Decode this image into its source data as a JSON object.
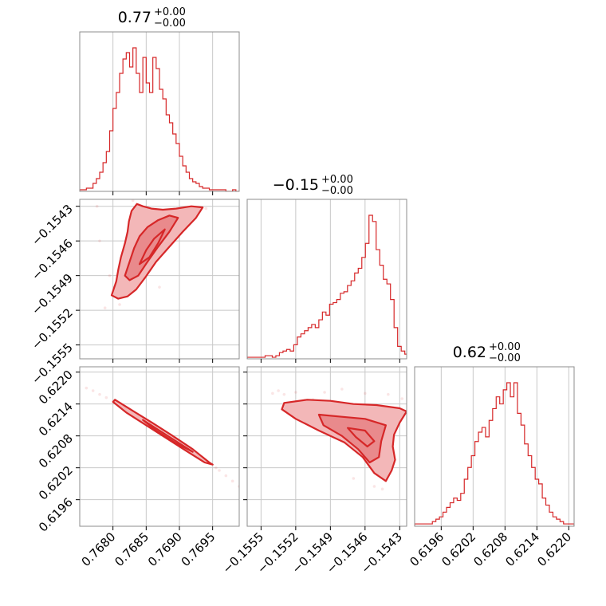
{
  "chart_data": {
    "type": "corner",
    "color": "#d62728",
    "parameters": [
      {
        "title_main": "0.77",
        "title_plus": "+0.00",
        "title_minus": "−0.00",
        "range": [
          0.7675,
          0.7699
        ],
        "ticks": [
          {
            "value": 0.768,
            "label": "0.7680"
          },
          {
            "value": 0.7685,
            "label": "0.7685"
          },
          {
            "value": 0.769,
            "label": "0.7690"
          },
          {
            "value": 0.7695,
            "label": "0.7695"
          }
        ],
        "histogram": {
          "bin_edges_start": 0.7675,
          "bin_width": 5e-05,
          "counts": [
            1,
            1,
            2,
            2,
            5,
            8,
            12,
            18,
            25,
            38,
            52,
            62,
            74,
            83,
            87,
            78,
            90,
            74,
            62,
            84,
            68,
            62,
            84,
            77,
            64,
            58,
            48,
            43,
            36,
            30,
            22,
            16,
            12,
            8,
            6,
            5,
            3,
            2,
            2,
            1,
            1,
            1,
            1,
            1,
            0,
            0,
            1,
            0
          ]
        }
      },
      {
        "title_main": "−0.15",
        "title_plus": "+0.00",
        "title_minus": "−0.00",
        "range": [
          -0.15562,
          -0.15424
        ],
        "ticks": [
          {
            "value": -0.1555,
            "label": "−0.1555"
          },
          {
            "value": -0.1552,
            "label": "−0.1552"
          },
          {
            "value": -0.1549,
            "label": "−0.1549"
          },
          {
            "value": -0.1546,
            "label": "−0.1546"
          },
          {
            "value": -0.1543,
            "label": "−0.1543"
          }
        ],
        "histogram": {
          "bin_edges_start": -0.15562,
          "bin_width": 3.1e-05,
          "counts": [
            1,
            1,
            1,
            1,
            1,
            2,
            2,
            1,
            2,
            4,
            5,
            6,
            5,
            9,
            14,
            16,
            18,
            20,
            22,
            20,
            25,
            30,
            28,
            35,
            36,
            38,
            42,
            43,
            47,
            50,
            55,
            58,
            65,
            74,
            92,
            88,
            70,
            60,
            51,
            48,
            38,
            20,
            8,
            5,
            3,
            2
          ]
        }
      },
      {
        "title_main": "0.62",
        "title_plus": "+0.00",
        "title_minus": "−0.00",
        "range": [
          0.6191,
          0.6221
        ],
        "ticks": [
          {
            "value": 0.6196,
            "label": "0.6196"
          },
          {
            "value": 0.6202,
            "label": "0.6202"
          },
          {
            "value": 0.6208,
            "label": "0.6208"
          },
          {
            "value": 0.6214,
            "label": "0.6214"
          },
          {
            "value": 0.622,
            "label": "0.6220"
          }
        ],
        "histogram": {
          "bin_edges_start": 0.6191,
          "bin_width": 6.67e-05,
          "counts": [
            1,
            1,
            1,
            1,
            1,
            2,
            3,
            4,
            6,
            8,
            10,
            12,
            11,
            14,
            20,
            25,
            30,
            36,
            40,
            42,
            38,
            45,
            50,
            55,
            52,
            58,
            61,
            55,
            61,
            48,
            43,
            35,
            30,
            25,
            20,
            18,
            12,
            9,
            6,
            4,
            3,
            2,
            1,
            1,
            1
          ]
        }
      }
    ],
    "pairs": [
      {
        "x_param": 0,
        "y_param": 1,
        "contours": [
          {
            "kind": "outer",
            "points": [
              [
                0.76798,
                -0.15507
              ],
              [
                0.76805,
                -0.15495
              ],
              [
                0.76808,
                -0.15485
              ],
              [
                0.76812,
                -0.15474
              ],
              [
                0.76818,
                -0.15462
              ],
              [
                0.76822,
                -0.15452
              ],
              [
                0.76824,
                -0.15443
              ],
              [
                0.76828,
                -0.15434
              ],
              [
                0.76836,
                -0.15428
              ],
              [
                0.76845,
                -0.1543
              ],
              [
                0.76858,
                -0.15432
              ],
              [
                0.76875,
                -0.15433
              ],
              [
                0.76895,
                -0.15432
              ],
              [
                0.76918,
                -0.1543
              ],
              [
                0.76935,
                -0.15431
              ],
              [
                0.76925,
                -0.1544
              ],
              [
                0.76905,
                -0.15452
              ],
              [
                0.76885,
                -0.15465
              ],
              [
                0.76865,
                -0.15478
              ],
              [
                0.76848,
                -0.15492
              ],
              [
                0.76835,
                -0.15502
              ],
              [
                0.76822,
                -0.15508
              ],
              [
                0.76808,
                -0.1551
              ],
              [
                0.76798,
                -0.15507
              ]
            ]
          },
          {
            "kind": "inner",
            "points": [
              [
                0.76818,
                -0.1549
              ],
              [
                0.76825,
                -0.15478
              ],
              [
                0.76832,
                -0.15466
              ],
              [
                0.7684,
                -0.15456
              ],
              [
                0.76852,
                -0.15448
              ],
              [
                0.76868,
                -0.15442
              ],
              [
                0.76885,
                -0.15438
              ],
              [
                0.76898,
                -0.1544
              ],
              [
                0.76885,
                -0.15452
              ],
              [
                0.76868,
                -0.15465
              ],
              [
                0.76852,
                -0.15478
              ],
              [
                0.76838,
                -0.1549
              ],
              [
                0.76825,
                -0.15494
              ],
              [
                0.76818,
                -0.1549
              ]
            ]
          },
          {
            "kind": "line",
            "points": [
              [
                0.7684,
                -0.1548
              ],
              [
                0.7685,
                -0.15468
              ],
              [
                0.76862,
                -0.15458
              ],
              [
                0.76878,
                -0.1545
              ],
              [
                0.76868,
                -0.15462
              ],
              [
                0.76855,
                -0.15474
              ],
              [
                0.7684,
                -0.1548
              ]
            ]
          }
        ],
        "scatter": [
          [
            0.76788,
            -0.15518
          ],
          [
            0.76802,
            -0.155
          ],
          [
            0.76815,
            -0.15488
          ],
          [
            0.7683,
            -0.1547
          ],
          [
            0.76845,
            -0.1544
          ],
          [
            0.7686,
            -0.1544
          ],
          [
            0.769,
            -0.15445
          ],
          [
            0.7692,
            -0.15436
          ],
          [
            0.7694,
            -0.15432
          ],
          [
            0.7683,
            -0.15425
          ],
          [
            0.7681,
            -0.15515
          ],
          [
            0.76795,
            -0.1549
          ],
          [
            0.7678,
            -0.1546
          ],
          [
            0.76776,
            -0.1543
          ],
          [
            0.7687,
            -0.155
          ]
        ]
      },
      {
        "x_param": 0,
        "y_param": 2,
        "contours": [
          {
            "kind": "outer",
            "points": [
              [
                0.76803,
                0.62148
              ],
              [
                0.7683,
                0.62127
              ],
              [
                0.7686,
                0.62104
              ],
              [
                0.7689,
                0.6208
              ],
              [
                0.7692,
                0.62055
              ],
              [
                0.76945,
                0.6203
              ],
              [
                0.7695,
                0.62026
              ],
              [
                0.76938,
                0.6203
              ],
              [
                0.7691,
                0.62052
              ],
              [
                0.7688,
                0.62076
              ],
              [
                0.7685,
                0.621
              ],
              [
                0.7682,
                0.62124
              ],
              [
                0.768,
                0.62144
              ],
              [
                0.76803,
                0.62148
              ]
            ]
          },
          {
            "kind": "inner",
            "points": [
              [
                0.76845,
                0.6211
              ],
              [
                0.7687,
                0.6209
              ],
              [
                0.769,
                0.62066
              ],
              [
                0.7692,
                0.6205
              ],
              [
                0.76895,
                0.62066
              ],
              [
                0.76865,
                0.6209
              ],
              [
                0.76845,
                0.6211
              ]
            ]
          }
        ],
        "scatter": [
          [
            0.7676,
            0.6217
          ],
          [
            0.7677,
            0.62165
          ],
          [
            0.7678,
            0.62158
          ],
          [
            0.7679,
            0.62152
          ],
          [
            0.7696,
            0.62015
          ],
          [
            0.7697,
            0.62005
          ],
          [
            0.7698,
            0.61995
          ],
          [
            0.7699,
            0.61985
          ],
          [
            0.76815,
            0.62135
          ],
          [
            0.76955,
            0.6202
          ]
        ]
      },
      {
        "x_param": 1,
        "y_param": 2,
        "contours": [
          {
            "kind": "outer",
            "points": [
              [
                -0.1553,
                0.62142
              ],
              [
                -0.1551,
                0.62148
              ],
              [
                -0.1549,
                0.62146
              ],
              [
                -0.1547,
                0.6214
              ],
              [
                -0.1545,
                0.62138
              ],
              [
                -0.1543,
                0.62132
              ],
              [
                -0.15424,
                0.62126
              ],
              [
                -0.1543,
                0.62105
              ],
              [
                -0.15435,
                0.62082
              ],
              [
                -0.15436,
                0.6206
              ],
              [
                -0.15434,
                0.62035
              ],
              [
                -0.15437,
                0.62015
              ],
              [
                -0.15442,
                0.61995
              ],
              [
                -0.15452,
                0.6201
              ],
              [
                -0.15462,
                0.6204
              ],
              [
                -0.15478,
                0.62068
              ],
              [
                -0.155,
                0.6209
              ],
              [
                -0.1552,
                0.62112
              ],
              [
                -0.15532,
                0.6213
              ],
              [
                -0.1553,
                0.62142
              ]
            ]
          },
          {
            "kind": "inner",
            "points": [
              [
                -0.155,
                0.6212
              ],
              [
                -0.1548,
                0.62116
              ],
              [
                -0.1546,
                0.62112
              ],
              [
                -0.15442,
                0.621
              ],
              [
                -0.15446,
                0.6207
              ],
              [
                -0.15448,
                0.6204
              ],
              [
                -0.15456,
                0.6203
              ],
              [
                -0.15466,
                0.62055
              ],
              [
                -0.1548,
                0.6208
              ],
              [
                -0.15496,
                0.621
              ],
              [
                -0.155,
                0.6212
              ]
            ]
          },
          {
            "kind": "line",
            "points": [
              [
                -0.15475,
                0.62095
              ],
              [
                -0.1546,
                0.6209
              ],
              [
                -0.15452,
                0.6207
              ],
              [
                -0.15458,
                0.6206
              ],
              [
                -0.15468,
                0.62078
              ],
              [
                -0.15475,
                0.62095
              ]
            ]
          }
        ],
        "scatter": [
          [
            -0.15535,
            0.62165
          ],
          [
            -0.1554,
            0.6216
          ],
          [
            -0.1553,
            0.62158
          ],
          [
            -0.1552,
            0.62162
          ],
          [
            -0.1548,
            0.62168
          ],
          [
            -0.1546,
            0.6216
          ],
          [
            -0.1544,
            0.62158
          ],
          [
            -0.15428,
            0.6215
          ],
          [
            -0.15452,
            0.61985
          ],
          [
            -0.15445,
            0.6198
          ],
          [
            -0.1547,
            0.62
          ],
          [
            -0.15505,
            0.62148
          ],
          [
            -0.15495,
            0.62162
          ]
        ]
      }
    ]
  }
}
